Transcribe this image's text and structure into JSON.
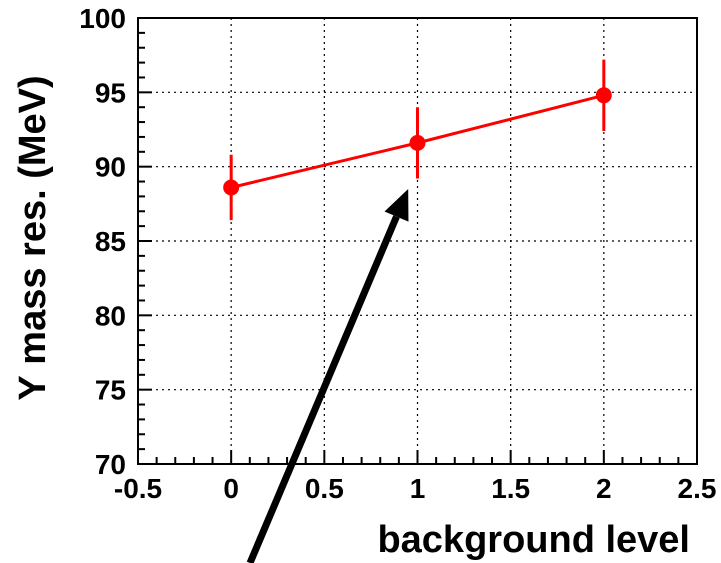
{
  "chart_data": {
    "type": "line",
    "title": "",
    "xlabel": "background level",
    "ylabel": "Υ mass res. (MeV)",
    "xlim": [
      -0.5,
      2.5
    ],
    "ylim": [
      70,
      100
    ],
    "xticks": [
      "-0.5",
      "0",
      "0.5",
      "1",
      "1.5",
      "2",
      "2.5"
    ],
    "yticks": [
      "70",
      "75",
      "80",
      "85",
      "90",
      "95",
      "100"
    ],
    "grid": true,
    "series": [
      {
        "x": [
          0,
          1,
          2
        ],
        "y": [
          88.6,
          91.6,
          94.8
        ],
        "yerr": [
          2.2,
          2.4,
          2.4
        ],
        "color": "#ff0000"
      }
    ],
    "annotations": [
      {
        "type": "arrow",
        "pointing_to": {
          "x": 0.95,
          "y": 88.5
        },
        "color": "#000000"
      }
    ]
  }
}
